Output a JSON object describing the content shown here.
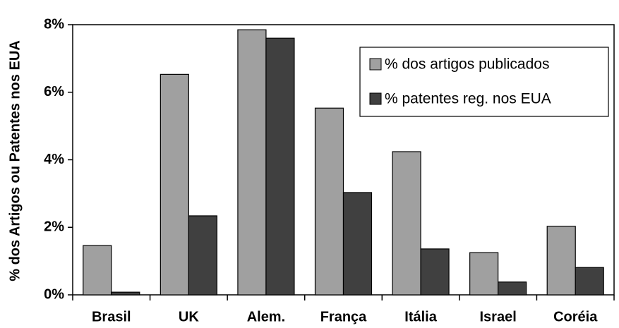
{
  "chart_data": {
    "type": "bar",
    "y_label": "% dos Artigos ou Patentes nos EUA",
    "categories": [
      "Brasil",
      "UK",
      "Alem.",
      "França",
      "Itália",
      "Israel",
      "Coréia"
    ],
    "series": [
      {
        "name": "% dos artigos publicados",
        "color": "#a0a0a0",
        "values": [
          1.46,
          6.53,
          7.85,
          5.53,
          4.24,
          1.25,
          2.03
        ]
      },
      {
        "name": "% patentes reg. nos EUA",
        "color": "#404040",
        "values": [
          0.08,
          2.34,
          7.6,
          3.03,
          1.36,
          0.38,
          0.81
        ]
      }
    ],
    "ylim": [
      0,
      8
    ],
    "yticks": [
      {
        "value": 0,
        "label": "0%"
      },
      {
        "value": 2,
        "label": "2%"
      },
      {
        "value": 4,
        "label": "4%"
      },
      {
        "value": 6,
        "label": "6%"
      },
      {
        "value": 8,
        "label": "8%"
      }
    ],
    "legend": "upper right"
  }
}
